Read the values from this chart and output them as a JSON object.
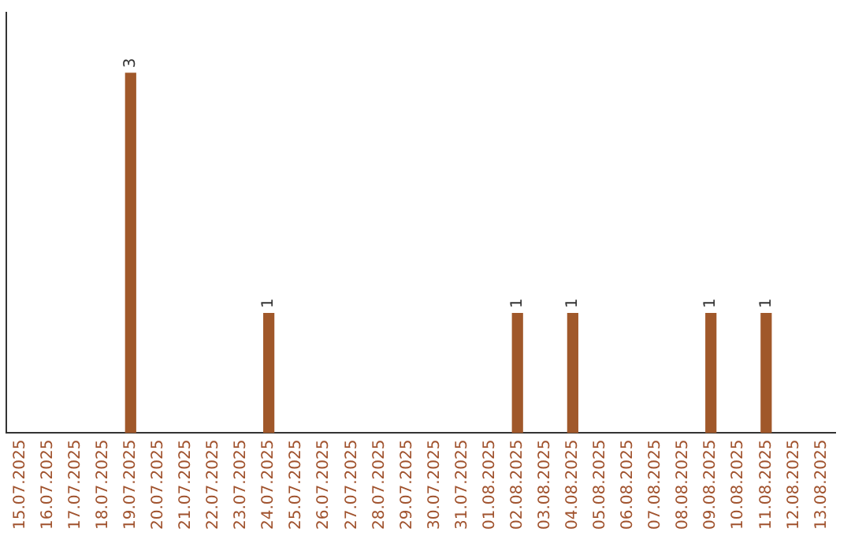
{
  "chart_data": {
    "type": "bar",
    "categories": [
      "15.07.2025",
      "16.07.2025",
      "17.07.2025",
      "18.07.2025",
      "19.07.2025",
      "20.07.2025",
      "21.07.2025",
      "22.07.2025",
      "23.07.2025",
      "24.07.2025",
      "25.07.2025",
      "26.07.2025",
      "27.07.2025",
      "28.07.2025",
      "29.07.2025",
      "30.07.2025",
      "31.07.2025",
      "01.08.2025",
      "02.08.2025",
      "03.08.2025",
      "04.08.2025",
      "05.08.2025",
      "06.08.2025",
      "07.08.2025",
      "08.08.2025",
      "09.08.2025",
      "10.08.2025",
      "11.08.2025",
      "12.08.2025",
      "13.08.2025"
    ],
    "values": [
      0,
      0,
      0,
      0,
      3,
      0,
      0,
      0,
      0,
      1,
      0,
      0,
      0,
      0,
      0,
      0,
      0,
      0,
      1,
      0,
      1,
      0,
      0,
      0,
      0,
      1,
      0,
      1,
      0,
      0
    ],
    "value_labels": [
      null,
      null,
      null,
      null,
      "3",
      null,
      null,
      null,
      null,
      "1",
      null,
      null,
      null,
      null,
      null,
      null,
      null,
      null,
      "1",
      null,
      "1",
      null,
      null,
      null,
      null,
      "1",
      null,
      "1",
      null,
      null
    ],
    "color": "#a0582a",
    "grid": false,
    "legend": false,
    "tick_labels": "x"
  }
}
